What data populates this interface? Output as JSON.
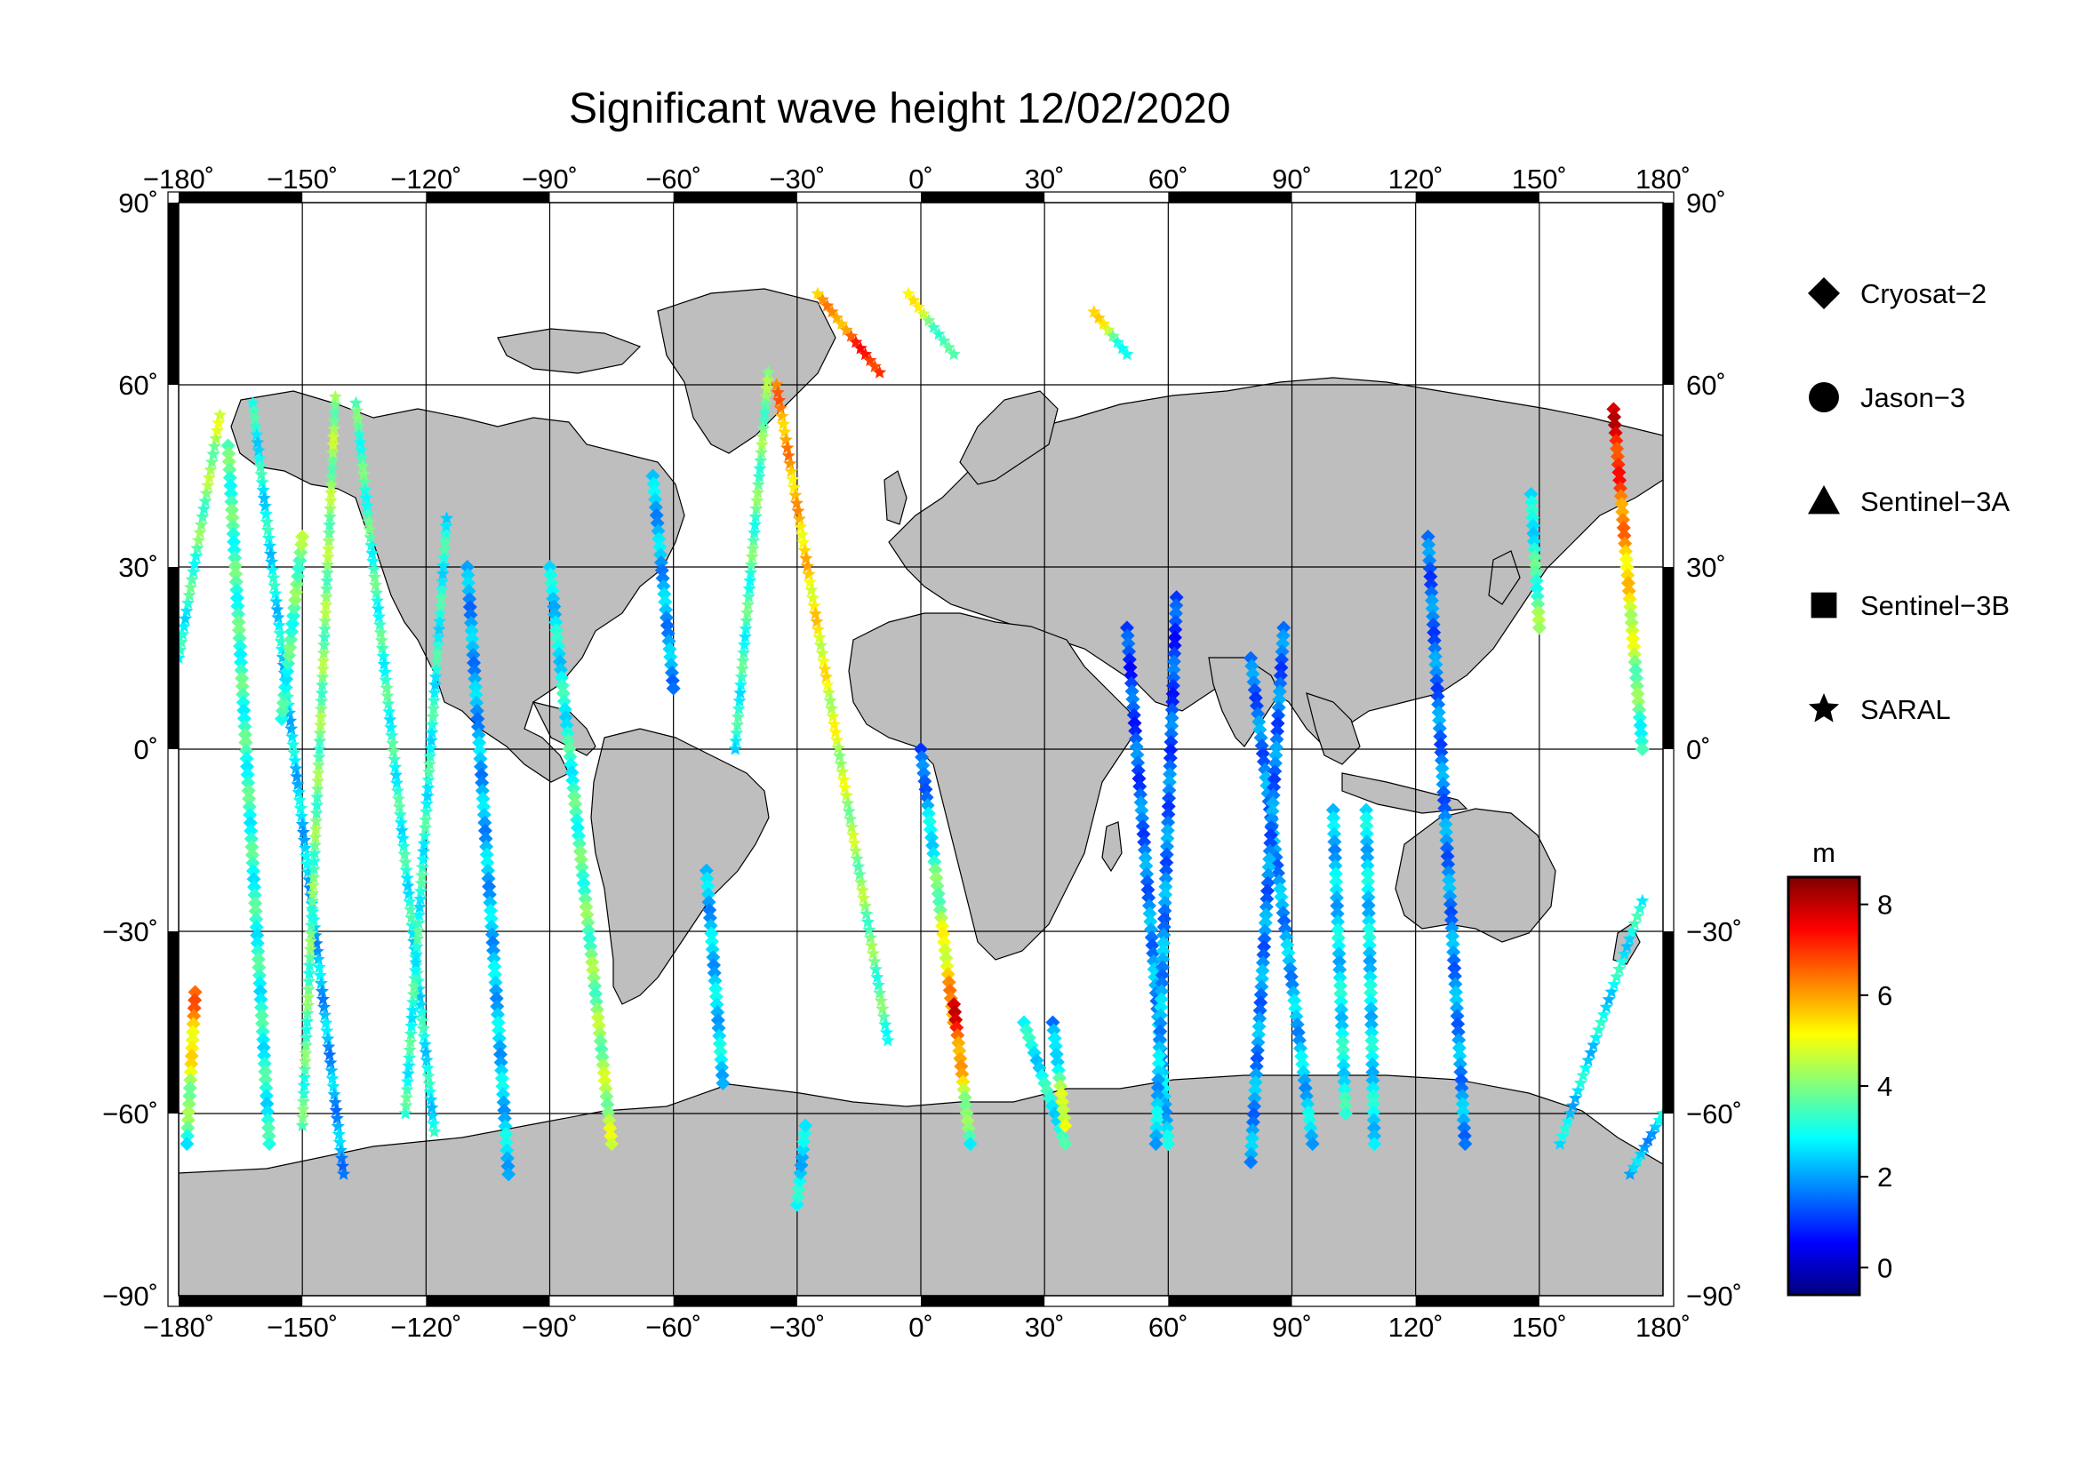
{
  "title": "Significant wave height 12/02/2020",
  "lon_ticks": [
    "−180˚",
    "−150˚",
    "−120˚",
    "−90˚",
    "−60˚",
    "−30˚",
    "0˚",
    "30˚",
    "60˚",
    "90˚",
    "120˚",
    "150˚",
    "180˚"
  ],
  "lat_ticks_left": [
    "90˚",
    "60˚",
    "30˚",
    "0˚",
    "−30˚",
    "−60˚",
    "−90˚"
  ],
  "lat_ticks_right": [
    "90˚",
    "60˚",
    "30˚",
    "0˚",
    "−30˚",
    "−60˚",
    "−90˚"
  ],
  "legend": [
    {
      "name": "Cryosat−2",
      "marker": "diamond"
    },
    {
      "name": "Jason−3",
      "marker": "circle"
    },
    {
      "name": "Sentinel−3A",
      "marker": "triangle"
    },
    {
      "name": "Sentinel−3B",
      "marker": "square"
    },
    {
      "name": "SARAL",
      "marker": "star"
    }
  ],
  "colorbar": {
    "unit": "m",
    "ticks": [
      "8",
      "6",
      "4",
      "2",
      "0"
    ],
    "range": [
      -0.6,
      8.6
    ],
    "colormap": "jet"
  },
  "colors": {
    "land": "#bebebe",
    "ocean": "#ffffff",
    "grid": "#000000"
  },
  "chart_data": {
    "type": "scatter",
    "title": "Significant wave height 12/02/2020",
    "x_range": [
      -180,
      180
    ],
    "y_range": [
      -90,
      90
    ],
    "grid": true,
    "legend_position": "right",
    "tracks": [
      {
        "sat": "SARAL",
        "points": [
          [
            -180,
            15,
            2.8
          ],
          [
            -170,
            55,
            4.5
          ]
        ]
      },
      {
        "sat": "SARAL",
        "points": [
          [
            -162,
            57,
            3.0
          ],
          [
            -140,
            -70,
            2.0
          ]
        ]
      },
      {
        "sat": "SARAL",
        "points": [
          [
            -150,
            -62,
            3.5
          ],
          [
            -142,
            58,
            4.2
          ]
        ]
      },
      {
        "sat": "SARAL",
        "points": [
          [
            -137,
            57,
            3.5
          ],
          [
            -118,
            -63,
            2.8
          ]
        ]
      },
      {
        "sat": "SARAL",
        "points": [
          [
            -125,
            -60,
            3.2
          ],
          [
            -115,
            38,
            3.0
          ]
        ]
      },
      {
        "sat": "SARAL",
        "points": [
          [
            -35,
            60,
            6.2
          ],
          [
            -8,
            -48,
            3.4
          ]
        ]
      },
      {
        "sat": "SARAL",
        "points": [
          [
            -37,
            62,
            4.0
          ],
          [
            -45,
            0,
            3.0
          ]
        ]
      },
      {
        "sat": "SARAL",
        "points": [
          [
            -25,
            75,
            5.5
          ],
          [
            -10,
            62,
            7.5
          ]
        ]
      },
      {
        "sat": "Cryosat-2",
        "points": [
          [
            -176,
            -40,
            6.5
          ],
          [
            -178,
            -65,
            3.2
          ]
        ]
      },
      {
        "sat": "Cryosat-2",
        "points": [
          [
            -168,
            50,
            3.5
          ],
          [
            -158,
            -65,
            3.0
          ]
        ]
      },
      {
        "sat": "Cryosat-2",
        "points": [
          [
            -155,
            5,
            3.0
          ],
          [
            -150,
            35,
            4.0
          ]
        ]
      },
      {
        "sat": "Cryosat-2",
        "points": [
          [
            -110,
            30,
            2.0
          ],
          [
            -100,
            -70,
            2.5
          ]
        ]
      },
      {
        "sat": "Cryosat-2",
        "points": [
          [
            -90,
            30,
            2.5
          ],
          [
            -75,
            -65,
            4.5
          ]
        ]
      },
      {
        "sat": "Cryosat-2",
        "points": [
          [
            -65,
            45,
            2.3
          ],
          [
            -60,
            10,
            2.0
          ]
        ]
      },
      {
        "sat": "Cryosat-2",
        "points": [
          [
            -52,
            -20,
            2.2
          ],
          [
            -48,
            -55,
            2.6
          ]
        ]
      },
      {
        "sat": "Cryosat-2",
        "points": [
          [
            -30,
            -75,
            2.8
          ],
          [
            -28,
            -62,
            2.4
          ]
        ]
      },
      {
        "sat": "Cryosat-2",
        "points": [
          [
            0,
            0,
            1.0
          ],
          [
            8,
            -45,
            6.5
          ]
        ]
      },
      {
        "sat": "Cryosat-2",
        "points": [
          [
            8,
            -42,
            7.8
          ],
          [
            12,
            -65,
            3.0
          ]
        ]
      },
      {
        "sat": "Cryosat-2",
        "points": [
          [
            25,
            -45,
            2.8
          ],
          [
            35,
            -65,
            3.0
          ]
        ]
      },
      {
        "sat": "Cryosat-2",
        "points": [
          [
            32,
            -45,
            1.5
          ],
          [
            35,
            -62,
            5.5
          ]
        ]
      },
      {
        "sat": "Cryosat-2",
        "points": [
          [
            50,
            20,
            1.0
          ],
          [
            60,
            -65,
            2.5
          ]
        ]
      },
      {
        "sat": "Cryosat-2",
        "points": [
          [
            62,
            25,
            1.0
          ],
          [
            57,
            -65,
            2.5
          ]
        ]
      },
      {
        "sat": "Cryosat-2",
        "points": [
          [
            80,
            15,
            1.5
          ],
          [
            95,
            -65,
            2.5
          ]
        ]
      },
      {
        "sat": "Cryosat-2",
        "points": [
          [
            88,
            20,
            1.5
          ],
          [
            80,
            -68,
            2.0
          ]
        ]
      },
      {
        "sat": "Cryosat-2",
        "points": [
          [
            100,
            -10,
            2.2
          ],
          [
            103,
            -60,
            3.0
          ]
        ]
      },
      {
        "sat": "Cryosat-2",
        "points": [
          [
            108,
            -10,
            2.5
          ],
          [
            110,
            -65,
            2.7
          ]
        ]
      },
      {
        "sat": "Cryosat-2",
        "points": [
          [
            123,
            35,
            1.5
          ],
          [
            132,
            -65,
            2.0
          ]
        ]
      },
      {
        "sat": "Cryosat-2",
        "points": [
          [
            148,
            42,
            2.5
          ],
          [
            150,
            20,
            4.0
          ]
        ]
      },
      {
        "sat": "Cryosat-2",
        "points": [
          [
            168,
            56,
            7.8
          ],
          [
            175,
            0,
            3.0
          ]
        ]
      },
      {
        "sat": "SARAL",
        "points": [
          [
            155,
            -65,
            2.5
          ],
          [
            175,
            -25,
            3.0
          ]
        ]
      },
      {
        "sat": "SARAL",
        "points": [
          [
            172,
            -70,
            2.0
          ],
          [
            180,
            -60,
            2.5
          ]
        ]
      },
      {
        "sat": "SARAL",
        "points": [
          [
            -3,
            75,
            5.2
          ],
          [
            8,
            65,
            3.0
          ]
        ]
      },
      {
        "sat": "SARAL",
        "points": [
          [
            42,
            72,
            5.5
          ],
          [
            50,
            65,
            3.0
          ]
        ]
      }
    ]
  }
}
